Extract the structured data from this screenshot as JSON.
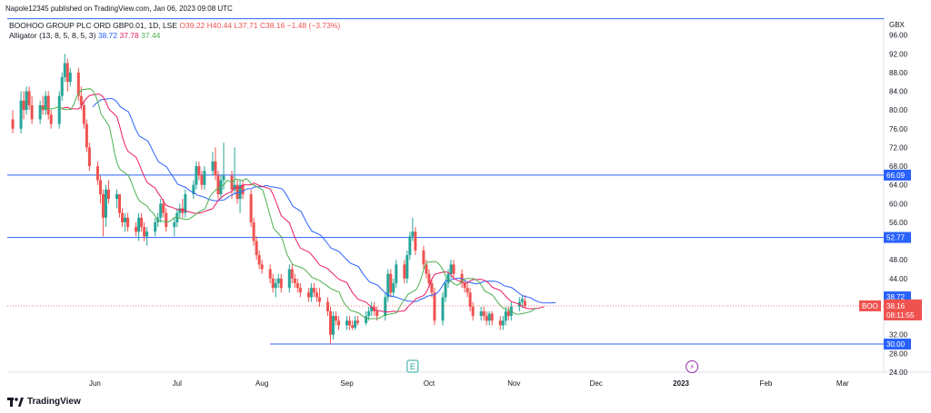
{
  "header": {
    "published": "Napole12345 published on TradingView.com, Jan 06, 2023 09:08 UTC"
  },
  "symbol": {
    "name": "BOOHOO GROUP PLC ORD GBP0.01, 1D, LSE",
    "open": "O39.22",
    "high": "H40.44",
    "low": "L37.71",
    "close": "C38.16",
    "change": "−1.48 (−3.73%)",
    "ticker": "BOO",
    "countdown": "08:11:55"
  },
  "alligator": {
    "label": "Alligator (13, 8, 5, 8, 5, 3)",
    "jaw": "38.72",
    "teeth": "37.78",
    "lips": "37.44"
  },
  "footer": {
    "brand": "TradingView"
  },
  "colors": {
    "up": "#26a69a",
    "down": "#ef5350",
    "jaw": "#2962ff",
    "teeth": "#e91e63",
    "lips": "#4caf50",
    "level": "#2962ff"
  },
  "chart_data": {
    "type": "candlestick",
    "currency": "GBX",
    "ylim": [
      24,
      100
    ],
    "y_ticks": [
      "96.00",
      "92.00",
      "88.00",
      "84.00",
      "80.00",
      "76.00",
      "72.00",
      "68.00",
      "64.00",
      "60.00",
      "56.00",
      "48.00",
      "44.00",
      "32.00",
      "28.00",
      "24.00"
    ],
    "x_ticks": [
      {
        "label": "Jun",
        "day": 30
      },
      {
        "label": "Jul",
        "day": 60
      },
      {
        "label": "Aug",
        "day": 91
      },
      {
        "label": "Sep",
        "day": 122
      },
      {
        "label": "Oct",
        "day": 152
      },
      {
        "label": "Nov",
        "day": 183
      },
      {
        "label": "Dec",
        "day": 213
      },
      {
        "label": "2023",
        "day": 244,
        "bold": true
      },
      {
        "label": "Feb",
        "day": 275
      },
      {
        "label": "Mar",
        "day": 303
      }
    ],
    "horizontal_levels": [
      {
        "value": 99.5,
        "label": ""
      },
      {
        "value": 66.09,
        "label": "66.09"
      },
      {
        "value": 52.77,
        "label": "52.77"
      },
      {
        "value": 30.0,
        "label": "30.00"
      }
    ],
    "price_tags": [
      {
        "value": 38.72,
        "label": "38.72",
        "color": "#2962ff"
      },
      {
        "value": 37.78,
        "label": "37.78",
        "color": "#e91e63"
      },
      {
        "value": 37.44,
        "label": "37.44",
        "color": "#4caf50"
      }
    ],
    "last_price": 38.16,
    "events": [
      {
        "label": "E",
        "day": 146
      },
      {
        "label": "⚡",
        "day": 248
      }
    ],
    "candles": [
      {
        "d": 0,
        "o": 78,
        "h": 80,
        "l": 75,
        "c": 76
      },
      {
        "d": 3,
        "o": 76,
        "h": 84,
        "l": 75,
        "c": 82
      },
      {
        "d": 4,
        "o": 82,
        "h": 84,
        "l": 78,
        "c": 80
      },
      {
        "d": 5,
        "o": 80,
        "h": 85,
        "l": 79,
        "c": 84
      },
      {
        "d": 6,
        "o": 84,
        "h": 85,
        "l": 80,
        "c": 81
      },
      {
        "d": 7,
        "o": 81,
        "h": 83,
        "l": 77,
        "c": 78
      },
      {
        "d": 10,
        "o": 78,
        "h": 82,
        "l": 77,
        "c": 81
      },
      {
        "d": 11,
        "o": 81,
        "h": 83,
        "l": 79,
        "c": 80
      },
      {
        "d": 12,
        "o": 80,
        "h": 84,
        "l": 79,
        "c": 83
      },
      {
        "d": 13,
        "o": 83,
        "h": 84,
        "l": 78,
        "c": 79
      },
      {
        "d": 14,
        "o": 79,
        "h": 80,
        "l": 76,
        "c": 77
      },
      {
        "d": 17,
        "o": 77,
        "h": 84,
        "l": 76,
        "c": 83
      },
      {
        "d": 18,
        "o": 83,
        "h": 88,
        "l": 82,
        "c": 87
      },
      {
        "d": 19,
        "o": 87,
        "h": 92,
        "l": 86,
        "c": 90
      },
      {
        "d": 20,
        "o": 90,
        "h": 91,
        "l": 84,
        "c": 86
      },
      {
        "d": 21,
        "o": 86,
        "h": 89,
        "l": 85,
        "c": 88
      },
      {
        "d": 24,
        "o": 88,
        "h": 89,
        "l": 82,
        "c": 83
      },
      {
        "d": 25,
        "o": 83,
        "h": 85,
        "l": 80,
        "c": 81
      },
      {
        "d": 26,
        "o": 81,
        "h": 82,
        "l": 76,
        "c": 77
      },
      {
        "d": 27,
        "o": 77,
        "h": 78,
        "l": 71,
        "c": 72
      },
      {
        "d": 28,
        "o": 72,
        "h": 73,
        "l": 67,
        "c": 68
      },
      {
        "d": 31,
        "o": 68,
        "h": 69,
        "l": 64,
        "c": 65
      },
      {
        "d": 32,
        "o": 65,
        "h": 66,
        "l": 60,
        "c": 62
      },
      {
        "d": 33,
        "o": 62,
        "h": 63,
        "l": 53,
        "c": 57
      },
      {
        "d": 34,
        "o": 57,
        "h": 64,
        "l": 55,
        "c": 63
      },
      {
        "d": 35,
        "o": 63,
        "h": 65,
        "l": 60,
        "c": 61
      },
      {
        "d": 38,
        "o": 61,
        "h": 63,
        "l": 59,
        "c": 62
      },
      {
        "d": 39,
        "o": 62,
        "h": 62,
        "l": 57,
        "c": 58
      },
      {
        "d": 40,
        "o": 58,
        "h": 59,
        "l": 55,
        "c": 56
      },
      {
        "d": 41,
        "o": 56,
        "h": 58,
        "l": 54,
        "c": 57
      },
      {
        "d": 42,
        "o": 57,
        "h": 58,
        "l": 54,
        "c": 55
      },
      {
        "d": 45,
        "o": 55,
        "h": 56,
        "l": 53,
        "c": 54
      },
      {
        "d": 46,
        "o": 54,
        "h": 58,
        "l": 52,
        "c": 57
      },
      {
        "d": 47,
        "o": 57,
        "h": 58,
        "l": 54,
        "c": 55
      },
      {
        "d": 48,
        "o": 55,
        "h": 56,
        "l": 52,
        "c": 53
      },
      {
        "d": 49,
        "o": 53,
        "h": 55,
        "l": 51,
        "c": 54
      },
      {
        "d": 52,
        "o": 54,
        "h": 57,
        "l": 53,
        "c": 56
      },
      {
        "d": 53,
        "o": 56,
        "h": 58,
        "l": 55,
        "c": 57
      },
      {
        "d": 54,
        "o": 57,
        "h": 61,
        "l": 56,
        "c": 60
      },
      {
        "d": 55,
        "o": 60,
        "h": 61,
        "l": 57,
        "c": 58
      },
      {
        "d": 56,
        "o": 58,
        "h": 59,
        "l": 54,
        "c": 55
      },
      {
        "d": 59,
        "o": 55,
        "h": 57,
        "l": 53,
        "c": 56
      },
      {
        "d": 60,
        "o": 56,
        "h": 59,
        "l": 55,
        "c": 58
      },
      {
        "d": 61,
        "o": 58,
        "h": 60,
        "l": 57,
        "c": 59
      },
      {
        "d": 62,
        "o": 59,
        "h": 61,
        "l": 57,
        "c": 58
      },
      {
        "d": 63,
        "o": 58,
        "h": 63,
        "l": 57,
        "c": 62
      },
      {
        "d": 66,
        "o": 62,
        "h": 65,
        "l": 61,
        "c": 64
      },
      {
        "d": 67,
        "o": 64,
        "h": 69,
        "l": 63,
        "c": 68
      },
      {
        "d": 68,
        "o": 68,
        "h": 69,
        "l": 65,
        "c": 66
      },
      {
        "d": 69,
        "o": 66,
        "h": 67,
        "l": 63,
        "c": 64
      },
      {
        "d": 70,
        "o": 64,
        "h": 68,
        "l": 63,
        "c": 67
      },
      {
        "d": 73,
        "o": 67,
        "h": 71,
        "l": 66,
        "c": 69
      },
      {
        "d": 74,
        "o": 69,
        "h": 72,
        "l": 65,
        "c": 66
      },
      {
        "d": 75,
        "o": 66,
        "h": 67,
        "l": 61,
        "c": 62
      },
      {
        "d": 76,
        "o": 62,
        "h": 66,
        "l": 61,
        "c": 65
      },
      {
        "d": 77,
        "o": 65,
        "h": 73,
        "l": 63,
        "c": 66
      },
      {
        "d": 80,
        "o": 66,
        "h": 67,
        "l": 61,
        "c": 63
      },
      {
        "d": 81,
        "o": 63,
        "h": 72,
        "l": 62,
        "c": 64
      },
      {
        "d": 82,
        "o": 64,
        "h": 65,
        "l": 60,
        "c": 61
      },
      {
        "d": 83,
        "o": 61,
        "h": 65,
        "l": 58,
        "c": 64
      },
      {
        "d": 84,
        "o": 64,
        "h": 65,
        "l": 61,
        "c": 62
      },
      {
        "d": 87,
        "o": 62,
        "h": 63,
        "l": 55,
        "c": 56
      },
      {
        "d": 88,
        "o": 56,
        "h": 57,
        "l": 51,
        "c": 52
      },
      {
        "d": 89,
        "o": 52,
        "h": 53,
        "l": 48,
        "c": 49
      },
      {
        "d": 90,
        "o": 49,
        "h": 50,
        "l": 46,
        "c": 47
      },
      {
        "d": 91,
        "o": 47,
        "h": 48,
        "l": 45,
        "c": 46
      },
      {
        "d": 94,
        "o": 46,
        "h": 47,
        "l": 43,
        "c": 44
      },
      {
        "d": 95,
        "o": 44,
        "h": 45,
        "l": 41,
        "c": 42
      },
      {
        "d": 96,
        "o": 42,
        "h": 44,
        "l": 40,
        "c": 43
      },
      {
        "d": 97,
        "o": 43,
        "h": 45,
        "l": 42,
        "c": 44
      },
      {
        "d": 98,
        "o": 44,
        "h": 45,
        "l": 41,
        "c": 42
      },
      {
        "d": 101,
        "o": 42,
        "h": 47,
        "l": 41,
        "c": 46
      },
      {
        "d": 102,
        "o": 46,
        "h": 47,
        "l": 43,
        "c": 44
      },
      {
        "d": 103,
        "o": 44,
        "h": 45,
        "l": 42,
        "c": 43
      },
      {
        "d": 104,
        "o": 43,
        "h": 44,
        "l": 41,
        "c": 42
      },
      {
        "d": 105,
        "o": 42,
        "h": 43,
        "l": 40,
        "c": 41
      },
      {
        "d": 108,
        "o": 41,
        "h": 42,
        "l": 39,
        "c": 40
      },
      {
        "d": 109,
        "o": 40,
        "h": 43,
        "l": 39,
        "c": 42
      },
      {
        "d": 110,
        "o": 42,
        "h": 43,
        "l": 40,
        "c": 41
      },
      {
        "d": 111,
        "o": 41,
        "h": 42,
        "l": 39,
        "c": 40
      },
      {
        "d": 112,
        "o": 40,
        "h": 42,
        "l": 38,
        "c": 39
      },
      {
        "d": 115,
        "o": 39,
        "h": 40,
        "l": 36,
        "c": 37
      },
      {
        "d": 116,
        "o": 37,
        "h": 38,
        "l": 30,
        "c": 32
      },
      {
        "d": 117,
        "o": 32,
        "h": 37,
        "l": 31,
        "c": 36
      },
      {
        "d": 118,
        "o": 36,
        "h": 37,
        "l": 34,
        "c": 35
      },
      {
        "d": 119,
        "o": 35,
        "h": 36,
        "l": 33,
        "c": 34
      },
      {
        "d": 122,
        "o": 34,
        "h": 36,
        "l": 33,
        "c": 35
      },
      {
        "d": 123,
        "o": 35,
        "h": 36,
        "l": 33,
        "c": 34
      },
      {
        "d": 124,
        "o": 34,
        "h": 35,
        "l": 33,
        "c": 33.5
      },
      {
        "d": 125,
        "o": 33.5,
        "h": 36,
        "l": 33,
        "c": 35
      },
      {
        "d": 126,
        "o": 35,
        "h": 36,
        "l": 34,
        "c": 34.5
      },
      {
        "d": 129,
        "o": 34.5,
        "h": 37,
        "l": 34,
        "c": 36
      },
      {
        "d": 130,
        "o": 36,
        "h": 38,
        "l": 35,
        "c": 37
      },
      {
        "d": 131,
        "o": 37,
        "h": 39,
        "l": 36,
        "c": 38
      },
      {
        "d": 132,
        "o": 38,
        "h": 39,
        "l": 36,
        "c": 37
      },
      {
        "d": 133,
        "o": 37,
        "h": 38,
        "l": 35,
        "c": 36
      },
      {
        "d": 136,
        "o": 36,
        "h": 41,
        "l": 35,
        "c": 40
      },
      {
        "d": 137,
        "o": 40,
        "h": 46,
        "l": 39,
        "c": 45
      },
      {
        "d": 138,
        "o": 45,
        "h": 46,
        "l": 40,
        "c": 41
      },
      {
        "d": 139,
        "o": 41,
        "h": 44,
        "l": 40,
        "c": 43
      },
      {
        "d": 140,
        "o": 43,
        "h": 48,
        "l": 42,
        "c": 47
      },
      {
        "d": 143,
        "o": 47,
        "h": 48,
        "l": 43,
        "c": 44
      },
      {
        "d": 144,
        "o": 44,
        "h": 50,
        "l": 43,
        "c": 49
      },
      {
        "d": 145,
        "o": 49,
        "h": 54,
        "l": 48,
        "c": 53
      },
      {
        "d": 146,
        "o": 53,
        "h": 57,
        "l": 52,
        "c": 54
      },
      {
        "d": 147,
        "o": 54,
        "h": 55,
        "l": 49,
        "c": 50
      },
      {
        "d": 150,
        "o": 50,
        "h": 51,
        "l": 46,
        "c": 47
      },
      {
        "d": 151,
        "o": 47,
        "h": 48,
        "l": 44,
        "c": 45
      },
      {
        "d": 152,
        "o": 45,
        "h": 46,
        "l": 42,
        "c": 43
      },
      {
        "d": 153,
        "o": 43,
        "h": 44,
        "l": 40,
        "c": 41
      },
      {
        "d": 154,
        "o": 41,
        "h": 42,
        "l": 34,
        "c": 35
      },
      {
        "d": 157,
        "o": 35,
        "h": 41,
        "l": 34,
        "c": 40
      },
      {
        "d": 158,
        "o": 40,
        "h": 44,
        "l": 39,
        "c": 43
      },
      {
        "d": 159,
        "o": 43,
        "h": 46,
        "l": 42,
        "c": 45
      },
      {
        "d": 160,
        "o": 45,
        "h": 48,
        "l": 44,
        "c": 47
      },
      {
        "d": 161,
        "o": 47,
        "h": 48,
        "l": 44,
        "c": 45
      },
      {
        "d": 164,
        "o": 45,
        "h": 46,
        "l": 42,
        "c": 43
      },
      {
        "d": 165,
        "o": 43,
        "h": 44,
        "l": 41,
        "c": 42
      },
      {
        "d": 166,
        "o": 42,
        "h": 43,
        "l": 40,
        "c": 41
      },
      {
        "d": 167,
        "o": 41,
        "h": 42,
        "l": 37,
        "c": 38
      },
      {
        "d": 168,
        "o": 38,
        "h": 39,
        "l": 35,
        "c": 36
      },
      {
        "d": 171,
        "o": 36,
        "h": 38,
        "l": 35,
        "c": 37
      },
      {
        "d": 172,
        "o": 37,
        "h": 38,
        "l": 35,
        "c": 36
      },
      {
        "d": 173,
        "o": 36,
        "h": 37,
        "l": 34,
        "c": 35
      },
      {
        "d": 174,
        "o": 35,
        "h": 37,
        "l": 34,
        "c": 36.5
      },
      {
        "d": 175,
        "o": 36.5,
        "h": 37,
        "l": 34,
        "c": 35
      },
      {
        "d": 178,
        "o": 35,
        "h": 36,
        "l": 33,
        "c": 34
      },
      {
        "d": 179,
        "o": 34,
        "h": 36,
        "l": 33,
        "c": 35
      },
      {
        "d": 180,
        "o": 35,
        "h": 38,
        "l": 34,
        "c": 37
      },
      {
        "d": 181,
        "o": 37,
        "h": 38,
        "l": 35,
        "c": 36
      },
      {
        "d": 182,
        "o": 36,
        "h": 39,
        "l": 35,
        "c": 38
      },
      {
        "d": 185,
        "o": 38,
        "h": 40,
        "l": 37,
        "c": 39
      },
      {
        "d": 186,
        "o": 39,
        "h": 40.44,
        "l": 37.71,
        "c": 39.64
      },
      {
        "d": 187,
        "o": 39.22,
        "h": 40.44,
        "l": 37.71,
        "c": 38.16
      }
    ]
  }
}
